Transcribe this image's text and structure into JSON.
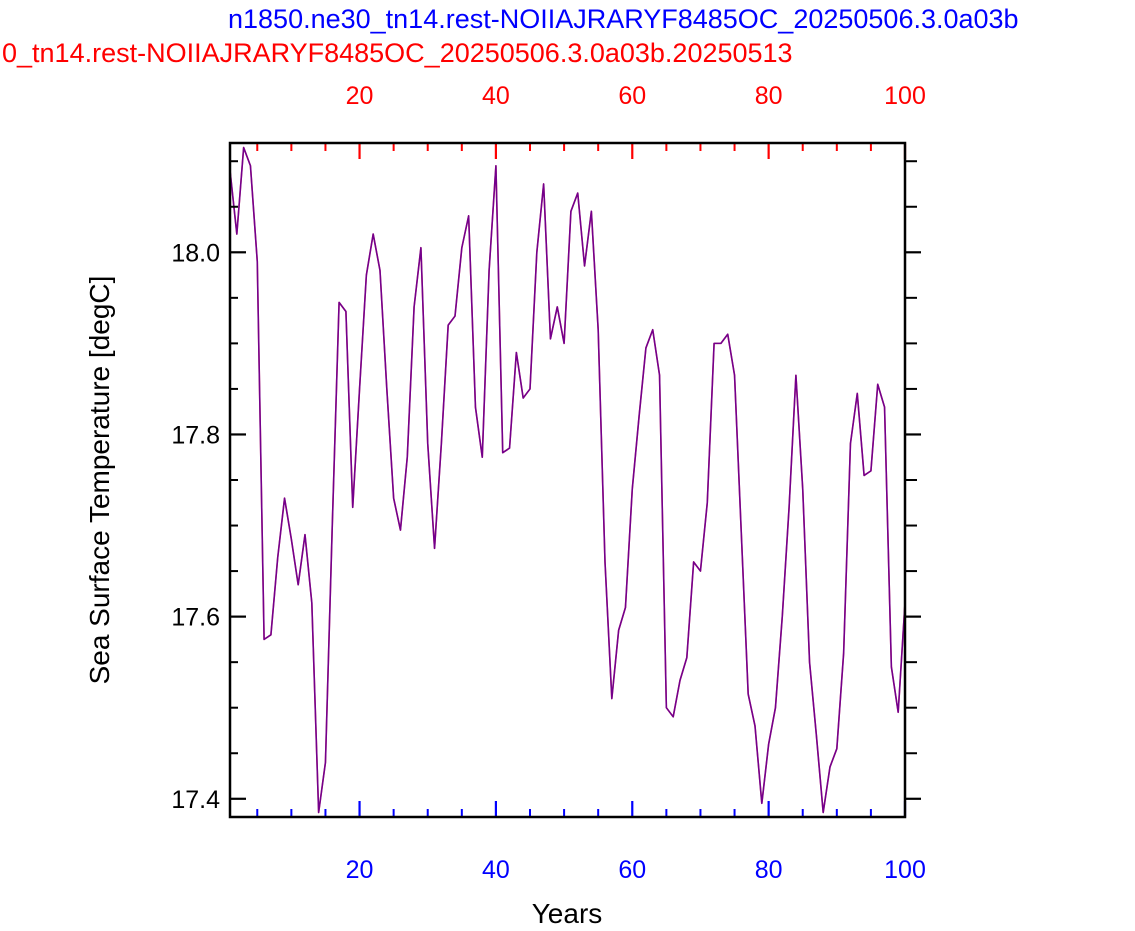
{
  "chart_data": {
    "type": "line",
    "title_blue": "n1850.ne30_tn14.rest-NOIIAJRARYF8485OC_20250506.3.0a03b",
    "title_red": "0_tn14.rest-NOIIAJRARYF8485OC_20250506.3.0a03b.20250513",
    "xlabel": "Years",
    "ylabel": "Sea Surface Temperature [degC]",
    "xlim": [
      1,
      100
    ],
    "ylim": [
      17.38,
      18.12
    ],
    "x_ticks": [
      20,
      40,
      60,
      80,
      100
    ],
    "y_ticks": [
      17.4,
      17.6,
      17.8,
      18.0
    ],
    "bottom_axis_color": "#0000ff",
    "top_axis_color": "#ff0000",
    "grid": false,
    "series": [
      {
        "color": "#ff0000",
        "x": [
          1,
          2,
          3,
          4,
          5,
          6,
          7,
          8,
          9,
          10,
          11,
          12,
          13,
          14,
          15,
          16,
          17,
          18,
          19,
          20,
          21,
          22,
          23,
          24,
          25,
          26,
          27,
          28,
          29,
          30,
          31,
          32,
          33,
          34,
          35,
          36,
          37,
          38,
          39,
          40,
          41,
          42,
          43,
          44,
          45,
          46,
          47,
          48,
          49,
          50,
          51,
          52,
          53,
          54,
          55,
          56,
          57,
          58,
          59,
          60,
          61,
          62,
          63,
          64,
          65,
          66,
          67,
          68,
          69,
          70,
          71,
          72,
          73,
          74,
          75,
          76,
          77,
          78,
          79,
          80,
          81,
          82,
          83,
          84,
          85,
          86,
          87,
          88,
          89,
          90,
          91,
          92,
          93,
          94,
          95,
          96,
          97,
          98,
          99,
          100
        ],
        "values": [
          18.09,
          18.02,
          18.115,
          18.095,
          17.99,
          17.575,
          17.58,
          17.665,
          17.73,
          17.685,
          17.635,
          17.69,
          17.615,
          17.385,
          17.44,
          17.7,
          17.945,
          17.935,
          17.72,
          17.85,
          17.975,
          18.02,
          17.98,
          17.85,
          17.73,
          17.695,
          17.775,
          17.94,
          18.005,
          17.79,
          17.675,
          17.79,
          17.92,
          17.93,
          18.005,
          18.04,
          17.83,
          17.775,
          17.98,
          18.095,
          17.78,
          17.785,
          17.89,
          17.84,
          17.85,
          18.0,
          18.075,
          17.905,
          17.94,
          17.9,
          18.045,
          18.065,
          17.985,
          18.045,
          17.915,
          17.66,
          17.51,
          17.585,
          17.61,
          17.74,
          17.82,
          17.895,
          17.915,
          17.865,
          17.5,
          17.49,
          17.53,
          17.555,
          17.66,
          17.65,
          17.725,
          17.9,
          17.9,
          17.91,
          17.865,
          17.69,
          17.515,
          17.48,
          17.395,
          17.46,
          17.5,
          17.6,
          17.72,
          17.865,
          17.74,
          17.55,
          17.47,
          17.385,
          17.435,
          17.455,
          17.56,
          17.79,
          17.845,
          17.755,
          17.76,
          17.855,
          17.83,
          17.545,
          17.495,
          17.615
        ]
      },
      {
        "color": "#0000ff",
        "x": [
          1,
          2,
          3,
          4,
          5,
          6,
          7,
          8,
          9,
          10,
          11,
          12,
          13,
          14,
          15,
          16,
          17,
          18,
          19,
          20,
          21,
          22,
          23,
          24,
          25,
          26,
          27,
          28,
          29,
          30,
          31,
          32,
          33,
          34,
          35,
          36,
          37,
          38,
          39,
          40,
          41,
          42,
          43,
          44,
          45,
          46,
          47,
          48,
          49,
          50,
          51,
          52,
          53,
          54,
          55,
          56,
          57,
          58,
          59,
          60,
          61,
          62,
          63,
          64,
          65,
          66,
          67,
          68,
          69,
          70,
          71,
          72,
          73,
          74,
          75,
          76,
          77,
          78,
          79,
          80,
          81,
          82,
          83,
          84,
          85,
          86,
          87,
          88,
          89,
          90,
          91,
          92,
          93,
          94,
          95,
          96,
          97,
          98,
          99,
          100
        ],
        "values": [
          18.09,
          18.02,
          18.115,
          18.095,
          17.99,
          17.575,
          17.58,
          17.665,
          17.73,
          17.685,
          17.635,
          17.69,
          17.615,
          17.385,
          17.44,
          17.7,
          17.945,
          17.935,
          17.72,
          17.85,
          17.975,
          18.02,
          17.98,
          17.85,
          17.73,
          17.695,
          17.775,
          17.94,
          18.005,
          17.79,
          17.675,
          17.79,
          17.92,
          17.93,
          18.005,
          18.04,
          17.83,
          17.775,
          17.98,
          18.095,
          17.78,
          17.785,
          17.89,
          17.84,
          17.85,
          18.0,
          18.075,
          17.905,
          17.94,
          17.9,
          18.045,
          18.065,
          17.985,
          18.045,
          17.915,
          17.66,
          17.51,
          17.585,
          17.61,
          17.74,
          17.82,
          17.895,
          17.915,
          17.865,
          17.5,
          17.49,
          17.53,
          17.555,
          17.66,
          17.65,
          17.725,
          17.9,
          17.9,
          17.91,
          17.865,
          17.69,
          17.515,
          17.48,
          17.395,
          17.46,
          17.5,
          17.6,
          17.72,
          17.865,
          17.74,
          17.55,
          17.47,
          17.385,
          17.435,
          17.455,
          17.56,
          17.79,
          17.845,
          17.755,
          17.76,
          17.855,
          17.83,
          17.545,
          17.495,
          17.615
        ]
      }
    ]
  }
}
